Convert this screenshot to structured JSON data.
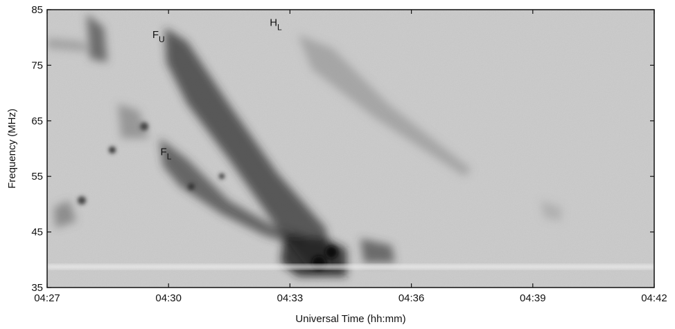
{
  "chart_data": {
    "type": "spectrogram",
    "xlabel": "Universal Time (hh:mm)",
    "ylabel": "Frequency (MHz)",
    "xlim": [
      267,
      282
    ],
    "xticks": [
      {
        "value": 267,
        "label": "04:27"
      },
      {
        "value": 270,
        "label": "04:30"
      },
      {
        "value": 273,
        "label": "04:33"
      },
      {
        "value": 276,
        "label": "04:36"
      },
      {
        "value": 279,
        "label": "04:39"
      },
      {
        "value": 282,
        "label": "04:42"
      }
    ],
    "ylim": [
      35,
      85
    ],
    "yticks": [
      35,
      45,
      55,
      65,
      75,
      85
    ],
    "annotations": [
      {
        "text": "F",
        "sub": "U",
        "x": 269.6,
        "y": 79.9
      },
      {
        "text": "F",
        "sub": "L",
        "x": 269.8,
        "y": 58.8
      },
      {
        "text": "H",
        "sub": "L",
        "x": 272.5,
        "y": 82.1
      }
    ]
  }
}
